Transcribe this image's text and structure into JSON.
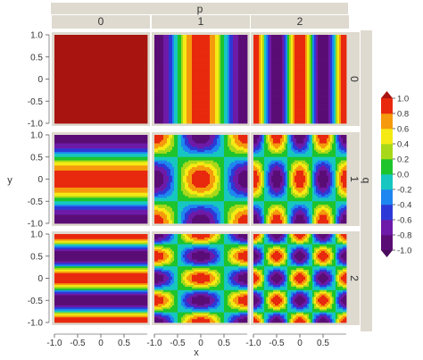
{
  "chart_data": {
    "type": "heatmap",
    "subtype": "faceted filled contour",
    "xlabel": "x",
    "ylabel": "y",
    "col_facet": {
      "label": "p",
      "levels": [
        "0",
        "1",
        "2"
      ]
    },
    "row_facet": {
      "label": "q",
      "levels": [
        "0",
        "1",
        "2"
      ]
    },
    "xlim": [
      -1.0,
      1.0
    ],
    "ylim": [
      -1.0,
      1.0
    ],
    "x_ticks": [
      "-1.0",
      "-0.5",
      "0",
      "0.5"
    ],
    "y_ticks": [
      "1.0",
      "0.5",
      "0",
      "-0.5",
      "-1.0"
    ],
    "function": "cos(p*pi*x) * cos(q*pi*y) evaluated on each panel",
    "grid": false,
    "legend": "right",
    "colorbar": {
      "ticks": [
        "1.0",
        "0.8",
        "0.6",
        "0.4",
        "0.2",
        "0.0",
        "-0.2",
        "-0.4",
        "-0.6",
        "-0.8",
        "-1.0"
      ],
      "range": [
        -1.0,
        1.0
      ],
      "levels": [
        {
          "from": -1.0,
          "to": -0.8,
          "color": "#5b0d76"
        },
        {
          "from": -0.8,
          "to": -0.6,
          "color": "#6d1aa8"
        },
        {
          "from": -0.6,
          "to": -0.4,
          "color": "#2d39d6"
        },
        {
          "from": -0.4,
          "to": -0.2,
          "color": "#1e86f0"
        },
        {
          "from": -0.2,
          "to": 0.0,
          "color": "#17c6c0"
        },
        {
          "from": 0.0,
          "to": 0.2,
          "color": "#1ec42c"
        },
        {
          "from": 0.2,
          "to": 0.4,
          "color": "#a8d81a"
        },
        {
          "from": 0.4,
          "to": 0.6,
          "color": "#f5ea14"
        },
        {
          "from": 0.6,
          "to": 0.8,
          "color": "#f59a0d"
        },
        {
          "from": 0.8,
          "to": 1.0,
          "color": "#e8290e"
        }
      ],
      "over_color": "#a8140f",
      "under_color": "#4a0a5c"
    },
    "panels": [
      {
        "p": 0,
        "q": 0
      },
      {
        "p": 1,
        "q": 0
      },
      {
        "p": 2,
        "q": 0
      },
      {
        "p": 0,
        "q": 1
      },
      {
        "p": 1,
        "q": 1
      },
      {
        "p": 2,
        "q": 1
      },
      {
        "p": 0,
        "q": 2
      },
      {
        "p": 1,
        "q": 2
      },
      {
        "p": 2,
        "q": 2
      }
    ]
  },
  "colors": {
    "strip_bg": "#dedacf",
    "panel_bg": "#ffffff"
  }
}
